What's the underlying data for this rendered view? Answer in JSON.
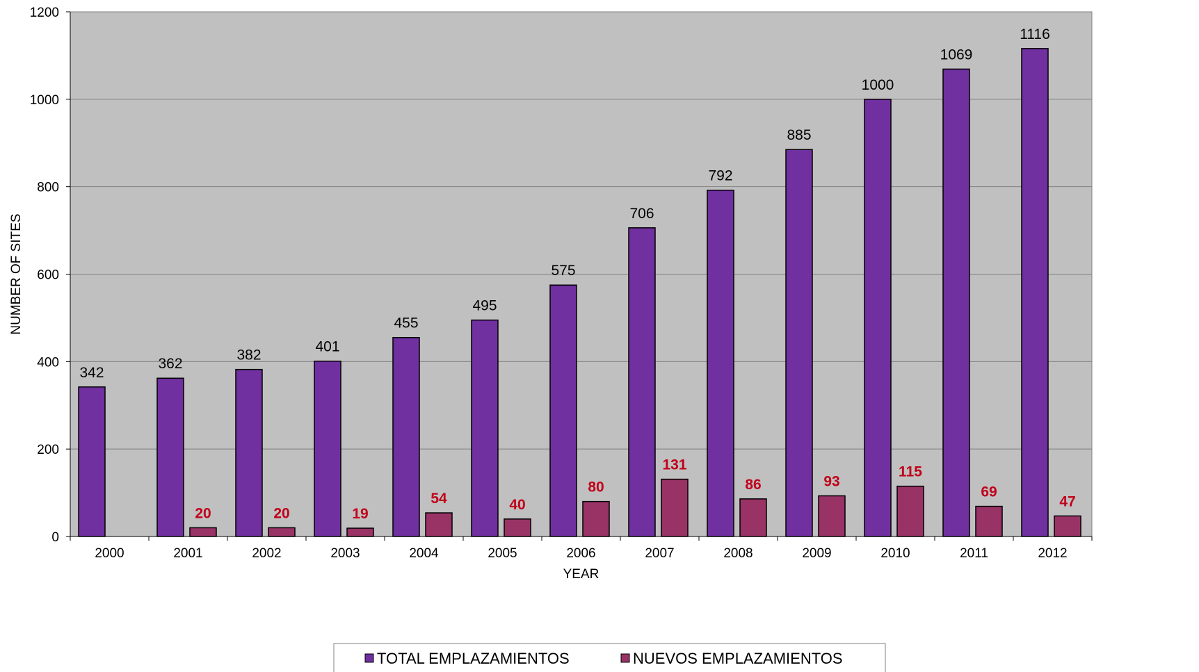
{
  "chart_data": {
    "type": "bar",
    "title": "",
    "xlabel": "YEAR",
    "ylabel": "NUMBER OF SITES",
    "ylim": [
      0,
      1200
    ],
    "yticks": [
      0,
      200,
      400,
      600,
      800,
      1000,
      1200
    ],
    "grid": true,
    "legend": "bottom",
    "categories": [
      "2000",
      "2001",
      "2002",
      "2003",
      "2004",
      "2005",
      "2006",
      "2007",
      "2008",
      "2009",
      "2010",
      "2011",
      "2012"
    ],
    "series": [
      {
        "name": "TOTAL EMPLAZAMIENTOS",
        "color": "#7030a0",
        "label_color": "#000000",
        "values": [
          342,
          362,
          382,
          401,
          455,
          495,
          575,
          706,
          792,
          885,
          1000,
          1069,
          1116
        ]
      },
      {
        "name": "NUEVOS EMPLAZAMIENTOS",
        "color": "#993366",
        "label_color": "#c0001a",
        "values": [
          null,
          20,
          20,
          19,
          54,
          40,
          80,
          131,
          86,
          93,
          115,
          69,
          47
        ]
      }
    ],
    "plot_background": "#c0c0c0"
  }
}
